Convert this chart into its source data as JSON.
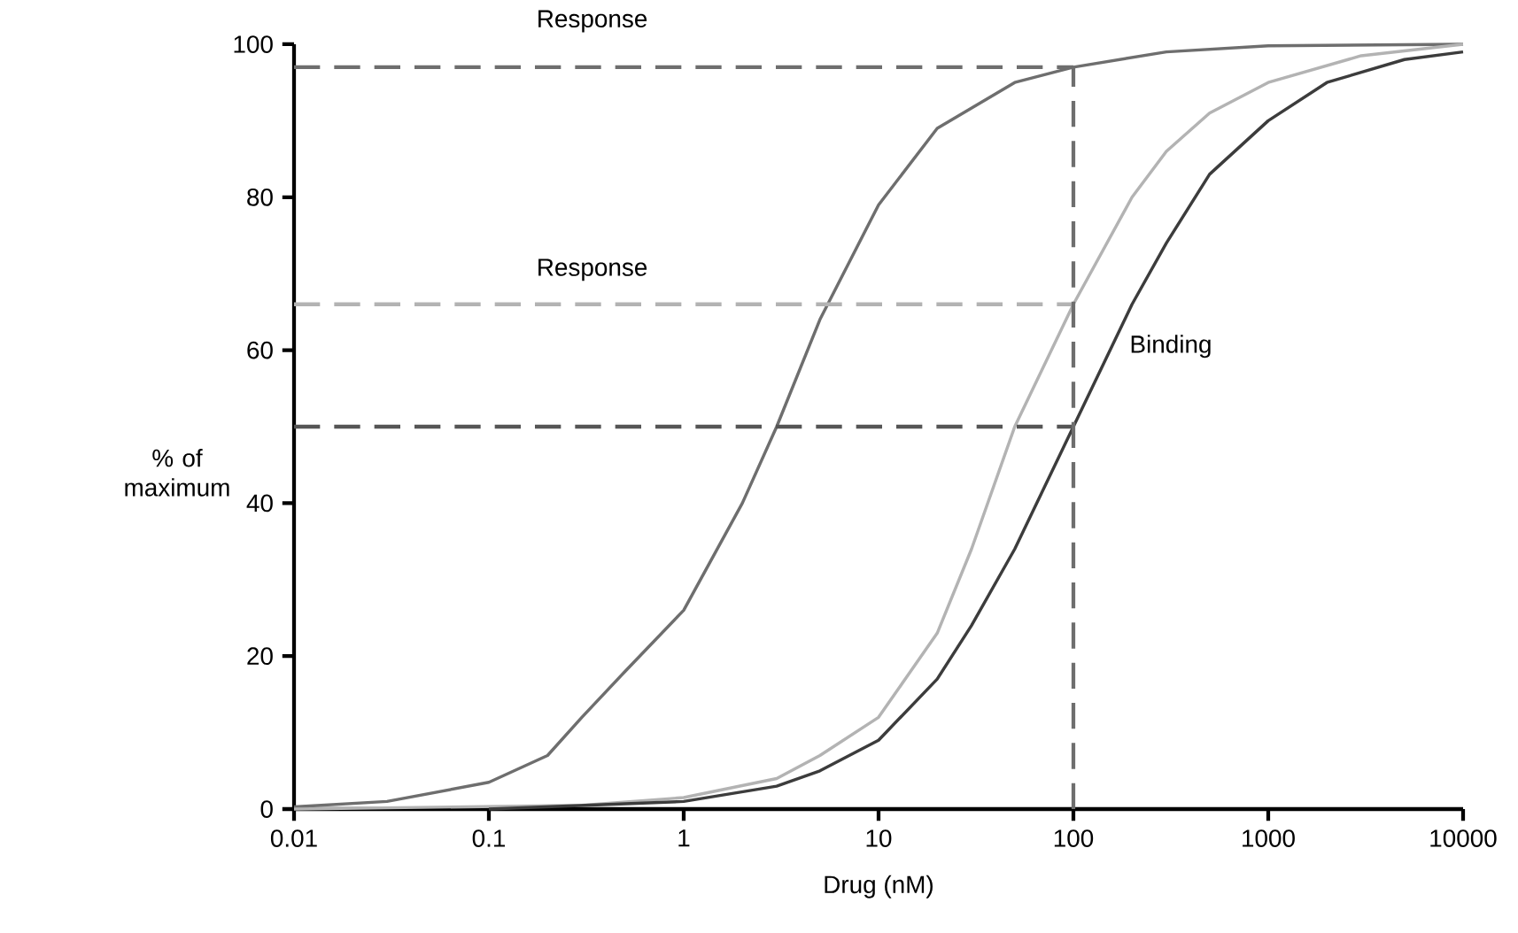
{
  "chart_data": {
    "type": "line",
    "xlabel": "Drug (nM)",
    "ylabel": "% of maximum",
    "log": "x",
    "xlim": [
      0.01,
      10000
    ],
    "ylim": [
      0,
      100
    ],
    "xticks": [
      0.01,
      0.1,
      1,
      10,
      100,
      1000,
      10000
    ],
    "yticks": [
      0,
      20,
      40,
      60,
      80,
      100
    ],
    "series": [
      {
        "line_style": "solid",
        "color": "#6e6e6e",
        "x": [
          0.01,
          0.03,
          0.1,
          0.2,
          0.3,
          0.5,
          1,
          2,
          3,
          5,
          10,
          20,
          50,
          100,
          300,
          1000,
          10000
        ],
        "values": [
          0.3,
          1,
          3.5,
          7,
          12,
          18,
          26,
          40,
          50,
          64,
          79,
          89,
          95,
          97,
          99,
          99.8,
          100
        ]
      },
      {
        "line_style": "solid",
        "color": "#b3b3b3",
        "x": [
          0.01,
          0.3,
          1,
          3,
          5,
          10,
          20,
          30,
          50,
          100,
          200,
          300,
          500,
          1000,
          3000,
          10000
        ],
        "values": [
          0,
          0.5,
          1.5,
          4,
          7,
          12,
          23,
          34,
          50,
          66,
          80,
          86,
          91,
          95,
          98.5,
          100
        ]
      },
      {
        "line_style": "solid",
        "color": "#3c3c3c",
        "x": [
          0.1,
          1,
          3,
          5,
          10,
          20,
          30,
          50,
          100,
          200,
          300,
          500,
          1000,
          2000,
          5000,
          10000
        ],
        "values": [
          0,
          1,
          3,
          5,
          9,
          17,
          24,
          34,
          50,
          66,
          74,
          83,
          90,
          95,
          98,
          99
        ]
      },
      {
        "line_style": "dashed",
        "color": "#6e6e6e",
        "x": [
          0.01,
          100
        ],
        "values": [
          97,
          97
        ]
      },
      {
        "line_style": "dashed",
        "color": "#b3b3b3",
        "x": [
          0.01,
          100
        ],
        "values": [
          66,
          66
        ]
      },
      {
        "line_style": "dashed",
        "color": "#555555",
        "x": [
          0.01,
          100
        ],
        "values": [
          50,
          50
        ]
      },
      {
        "line_style": "dashed",
        "color": "#6e6e6e",
        "x": [
          100,
          100
        ],
        "values": [
          0,
          97
        ]
      }
    ],
    "annotations": [
      "Response",
      "Response",
      "Binding"
    ]
  }
}
